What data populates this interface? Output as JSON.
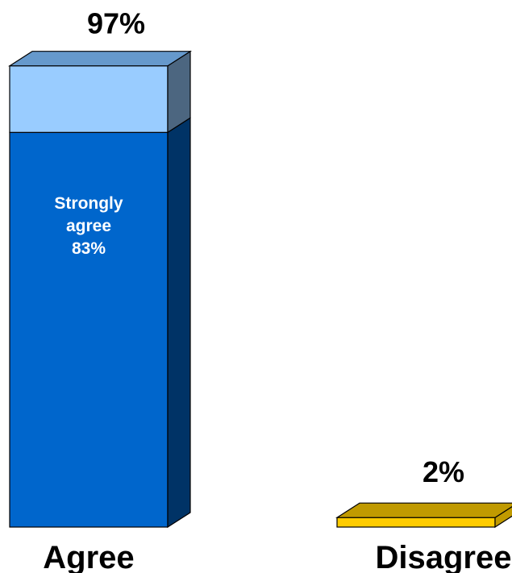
{
  "chart_data": {
    "type": "bar",
    "stacked": true,
    "three_d": true,
    "grid": false,
    "legend": "none",
    "categories": [
      "Agree",
      "Disagree"
    ],
    "totals": [
      97,
      2
    ],
    "total_labels": [
      "97%",
      "2%"
    ],
    "segments": [
      [
        {
          "label": [
            "Strongly",
            "agree",
            "83%"
          ],
          "value": 83,
          "color": "#0066CC",
          "side_color": "#003366",
          "top_color": "#6699CC"
        },
        {
          "label": [],
          "value": 14,
          "color": "#99CCFF",
          "side_color": "#4C6680",
          "top_color": "#6699CC"
        }
      ],
      [
        {
          "label": [],
          "value": 2,
          "color": "#FFCC00",
          "side_color": "#C09A00",
          "top_color": "#C09A00"
        }
      ]
    ],
    "ylim": [
      0,
      100
    ]
  }
}
